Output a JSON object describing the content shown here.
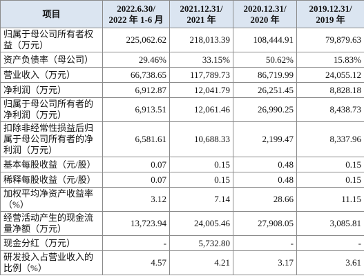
{
  "table": {
    "header": [
      [
        "项目"
      ],
      [
        "2022.6.30/",
        "2022 年 1-6 月"
      ],
      [
        "2021.12.31/",
        "2021 年"
      ],
      [
        "2020.12.31/",
        "2020 年"
      ],
      [
        "2019.12.31/",
        "2019 年"
      ]
    ],
    "rows": [
      [
        "归属于母公司所有者权益（万元）",
        "225,062.62",
        "218,013.39",
        "108,444.91",
        "79,879.63"
      ],
      [
        "资产负债率（母公司）",
        "29.46%",
        "33.15%",
        "50.62%",
        "15.83%"
      ],
      [
        "营业收入（万元）",
        "66,738.65",
        "117,789.73",
        "86,719.99",
        "24,055.12"
      ],
      [
        "净利润（万元）",
        "6,912.87",
        "12,041.79",
        "26,251.45",
        "8,828.18"
      ],
      [
        "归属于母公司所有者的净利润（万元）",
        "6,913.51",
        "12,061.46",
        "26,990.25",
        "8,438.73"
      ],
      [
        "扣除非经常性损益后归属于母公司所有者的净利润（万元）",
        "6,581.61",
        "10,688.33",
        "2,199.47",
        "8,337.96"
      ],
      [
        "基本每股收益（元/股）",
        "0.07",
        "0.15",
        "0.48",
        "0.15"
      ],
      [
        "稀释每股收益（元/股）",
        "0.07",
        "0.15",
        "0.48",
        "0.15"
      ],
      [
        "加权平均净资产收益率（%）",
        "3.12",
        "7.14",
        "28.66",
        "11.15"
      ],
      [
        "经营活动产生的现金流量净额（万元）",
        "13,723.94",
        "24,005.46",
        "27,908.05",
        "3,085.81"
      ],
      [
        "现金分红（万元）",
        "-",
        "5,732.80",
        "-",
        "-"
      ],
      [
        "研发投入占营业收入的比例（%）",
        "4.57",
        "4.21",
        "3.17",
        "3.61"
      ]
    ]
  }
}
